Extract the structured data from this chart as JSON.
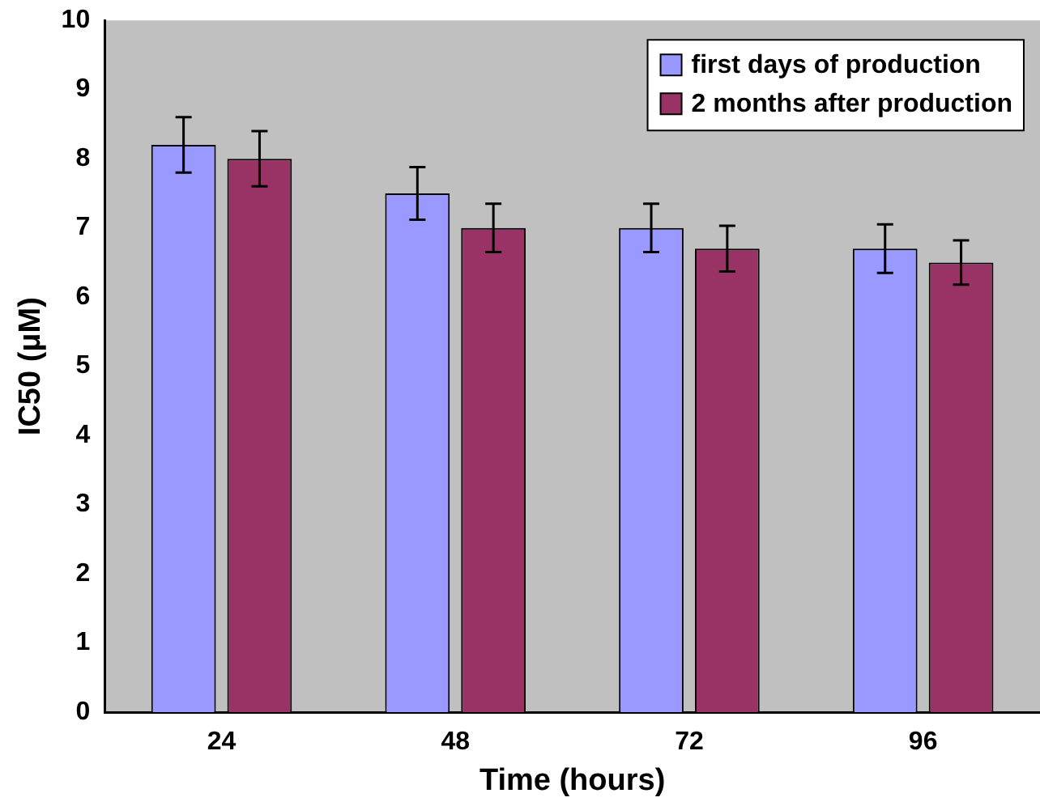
{
  "chart_data": {
    "type": "bar",
    "xlabel": "Time (hours)",
    "ylabel": "IC50 (μM)",
    "categories": [
      "24",
      "48",
      "72",
      "96"
    ],
    "series": [
      {
        "name": "first days of production",
        "color": "#9999ff",
        "values": [
          8.2,
          7.5,
          7.0,
          6.7
        ],
        "errors": [
          0.4,
          0.38,
          0.35,
          0.35
        ]
      },
      {
        "name": "2 months after production",
        "color": "#993366",
        "values": [
          8.0,
          7.0,
          6.7,
          6.5
        ],
        "errors": [
          0.4,
          0.35,
          0.33,
          0.32
        ]
      }
    ],
    "ylim": [
      0,
      10
    ],
    "yticks": [
      0,
      1,
      2,
      3,
      4,
      5,
      6,
      7,
      8,
      9,
      10
    ],
    "grid": false,
    "legend": "top right"
  }
}
